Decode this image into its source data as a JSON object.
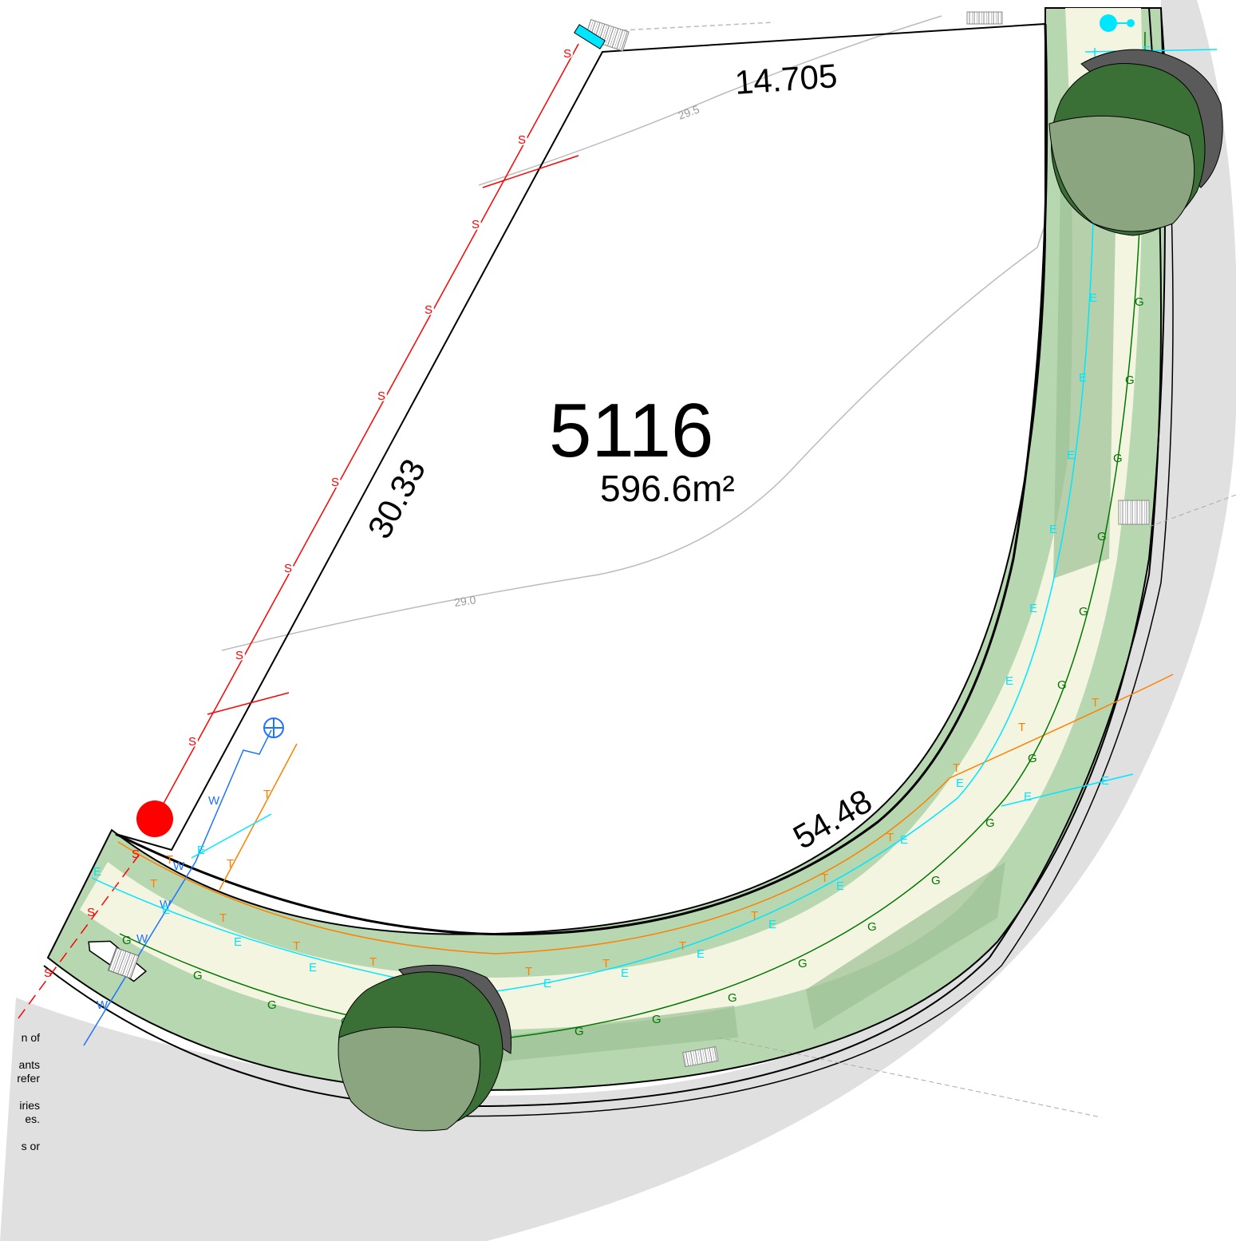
{
  "lot": {
    "number": "5116",
    "area": "596.6m²"
  },
  "dimensions": {
    "top_boundary": "14.705",
    "west_boundary": "30.33",
    "frontage": "54.48"
  },
  "contours": {
    "upper": "29.5",
    "lower": "29.0"
  },
  "service_labels": {
    "sewer": "S",
    "water": "W",
    "telecom": "T",
    "electrical": "E",
    "gas": "G"
  },
  "notes_fragments": [
    "n of",
    "",
    "ants",
    "refer",
    "",
    "iries",
    "es.",
    "",
    "s or"
  ],
  "colors": {
    "sewer": "#ff0000",
    "water": "#1e73ff",
    "telecom": "#ff7f00",
    "electrical": "#00e6ff",
    "gas": "#007700",
    "verge": "#b7d7b0",
    "footpath": "#f3f5e0",
    "road": "#e0e0e0",
    "tree_canopy": "#3a6f36",
    "tree_shadow": "#5a5a5a"
  },
  "icons": [
    "sewer-point-icon",
    "water-meter-icon",
    "tree-icon",
    "stormwater-pit-icon",
    "electrical-pillar-icon"
  ]
}
